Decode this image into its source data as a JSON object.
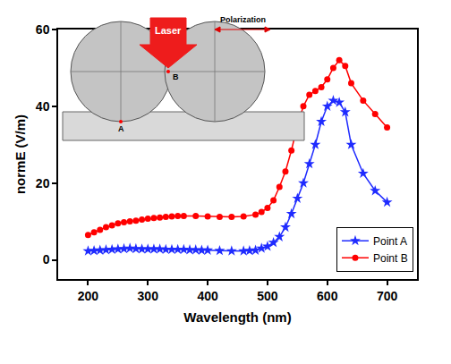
{
  "chart_data": {
    "type": "line",
    "x_label": "Wavelength (nm)",
    "y_label": "normE (V/m)",
    "xlim": [
      150,
      750
    ],
    "xticks": [
      200,
      300,
      400,
      500,
      600,
      700
    ],
    "ylim": [
      -5,
      60
    ],
    "yticks": [
      0,
      20,
      40,
      60
    ],
    "grid": false,
    "legend": "bottom right",
    "annotations": [
      "Laser",
      "Polarization",
      "A",
      "B"
    ],
    "series": [
      {
        "name": "Point A",
        "color": "#1f2bff",
        "marker": "star",
        "line_style": "solid",
        "x": [
          200,
          210,
          220,
          230,
          240,
          250,
          260,
          270,
          280,
          290,
          300,
          310,
          320,
          330,
          340,
          350,
          360,
          370,
          380,
          390,
          400,
          420,
          440,
          460,
          470,
          480,
          490,
          500,
          510,
          520,
          530,
          540,
          550,
          560,
          570,
          580,
          590,
          600,
          610,
          620,
          630,
          640,
          660,
          680,
          700
        ],
        "values": [
          2.3,
          2.4,
          2.5,
          2.6,
          2.7,
          2.8,
          2.9,
          3.0,
          2.9,
          2.8,
          2.8,
          2.8,
          2.8,
          2.7,
          2.7,
          2.7,
          2.7,
          2.6,
          2.6,
          2.5,
          2.5,
          2.4,
          2.3,
          2.3,
          2.4,
          2.5,
          3.0,
          3.5,
          4.5,
          6.0,
          8.5,
          12.0,
          16.0,
          20.0,
          25.0,
          30.0,
          36.0,
          40.0,
          41.5,
          41.0,
          38.5,
          30.0,
          22.5,
          18.0,
          15.0
        ]
      },
      {
        "name": "Point B",
        "color": "#ff0000",
        "marker": "circle",
        "line_style": "solid",
        "x": [
          200,
          210,
          220,
          230,
          240,
          250,
          260,
          270,
          280,
          290,
          300,
          310,
          320,
          330,
          340,
          350,
          360,
          380,
          400,
          420,
          440,
          460,
          480,
          490,
          500,
          510,
          520,
          530,
          540,
          550,
          560,
          570,
          580,
          590,
          600,
          610,
          620,
          630,
          640,
          660,
          680,
          700
        ],
        "values": [
          6.5,
          7.2,
          7.8,
          8.5,
          9.0,
          9.5,
          9.8,
          10.0,
          10.2,
          10.5,
          10.7,
          10.9,
          11.0,
          11.2,
          11.3,
          11.4,
          11.4,
          11.4,
          11.3,
          11.2,
          11.2,
          11.3,
          11.8,
          12.5,
          13.5,
          15.5,
          19.0,
          23.0,
          28.5,
          35.0,
          40.0,
          43.0,
          44.0,
          45.0,
          47.0,
          50.0,
          52.0,
          50.5,
          46.0,
          41.5,
          38.0,
          34.5
        ]
      }
    ]
  }
}
